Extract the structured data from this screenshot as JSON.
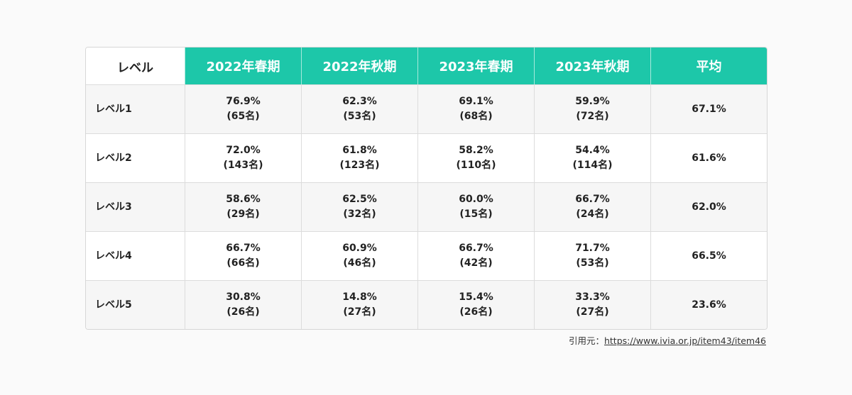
{
  "table": {
    "headers": [
      "レベル",
      "2022年春期",
      "2022年秋期",
      "2023年春期",
      "2023年秋期",
      "平均"
    ],
    "rows": [
      {
        "label": "レベル1",
        "cells": [
          {
            "rate": "76.9%",
            "count": "(65名)"
          },
          {
            "rate": "62.3%",
            "count": "(53名)"
          },
          {
            "rate": "69.1%",
            "count": "(68名)"
          },
          {
            "rate": "59.9%",
            "count": "(72名)"
          }
        ],
        "average": "67.1%"
      },
      {
        "label": "レベル2",
        "cells": [
          {
            "rate": "72.0%",
            "count": "(143名)"
          },
          {
            "rate": "61.8%",
            "count": "(123名)"
          },
          {
            "rate": "58.2%",
            "count": "(110名)"
          },
          {
            "rate": "54.4%",
            "count": "(114名)"
          }
        ],
        "average": "61.6%"
      },
      {
        "label": "レベル3",
        "cells": [
          {
            "rate": "58.6%",
            "count": "(29名)"
          },
          {
            "rate": "62.5%",
            "count": "(32名)"
          },
          {
            "rate": "60.0%",
            "count": "(15名)"
          },
          {
            "rate": "66.7%",
            "count": "(24名)"
          }
        ],
        "average": "62.0%"
      },
      {
        "label": "レベル4",
        "cells": [
          {
            "rate": "66.7%",
            "count": "(66名)"
          },
          {
            "rate": "60.9%",
            "count": "(46名)"
          },
          {
            "rate": "66.7%",
            "count": "(42名)"
          },
          {
            "rate": "71.7%",
            "count": "(53名)"
          }
        ],
        "average": "66.5%"
      },
      {
        "label": "レベル5",
        "cells": [
          {
            "rate": "30.8%",
            "count": "(26名)"
          },
          {
            "rate": "14.8%",
            "count": "(27名)"
          },
          {
            "rate": "15.4%",
            "count": "(26名)"
          },
          {
            "rate": "33.3%",
            "count": "(27名)"
          }
        ],
        "average": "23.6%"
      }
    ]
  },
  "source": {
    "prefix": "引用元：",
    "link_text": "https://www.ivia.or.jp/item43/item46"
  },
  "colors": {
    "header_accent": "#1dc7a9",
    "stripe": "#f6f6f6"
  }
}
